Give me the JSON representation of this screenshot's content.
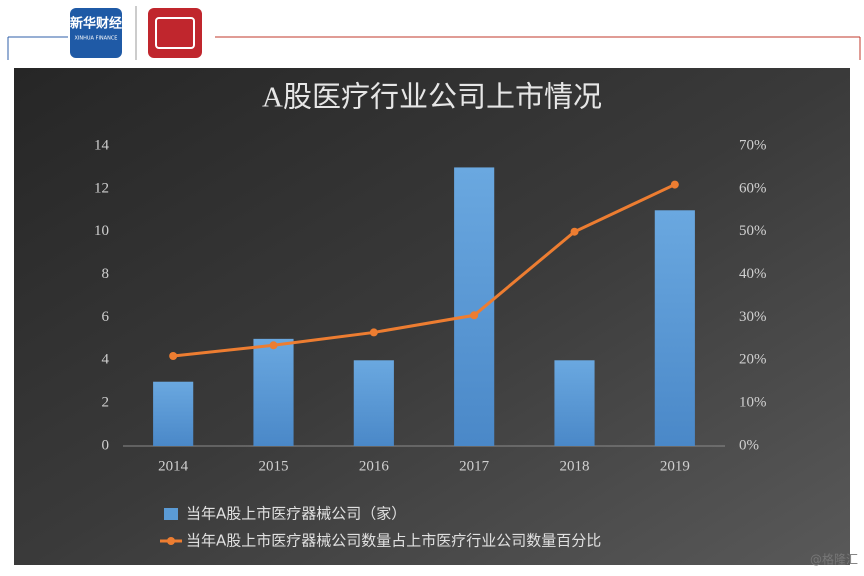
{
  "header": {
    "logo_text": "新华财经",
    "logo_subtext": "XINHUA FINANCE"
  },
  "credit": "@格隆汇",
  "chart_data": {
    "type": "bar",
    "title": "A股医疗行业公司上市情况",
    "categories": [
      "2014",
      "2015",
      "2016",
      "2017",
      "2018",
      "2019"
    ],
    "series": [
      {
        "name": "当年A股上市医疗器械公司（家）",
        "type": "bar",
        "color": "#5b9bd5",
        "values": [
          3,
          5,
          4,
          13,
          4,
          11
        ]
      },
      {
        "name": "当年A股上市医疗器械公司数量占上市医疗行业公司数量百分比",
        "type": "line",
        "axis": "y2",
        "color": "#ed7d31",
        "values": [
          21,
          23.5,
          26.5,
          30.5,
          50,
          61
        ]
      }
    ],
    "ylim": [
      0,
      14
    ],
    "yticks": [
      0,
      2,
      4,
      6,
      8,
      10,
      12,
      14
    ],
    "y2lim": [
      0,
      70
    ],
    "y2ticks": [
      {
        "value": 0,
        "label": "0%"
      },
      {
        "value": 10,
        "label": "10%"
      },
      {
        "value": 20,
        "label": "20%"
      },
      {
        "value": 30,
        "label": "30%"
      },
      {
        "value": 40,
        "label": "40%"
      },
      {
        "value": 50,
        "label": "50%"
      },
      {
        "value": 60,
        "label": "60%"
      },
      {
        "value": 70,
        "label": "70%"
      }
    ],
    "legend": "bottom-left"
  }
}
